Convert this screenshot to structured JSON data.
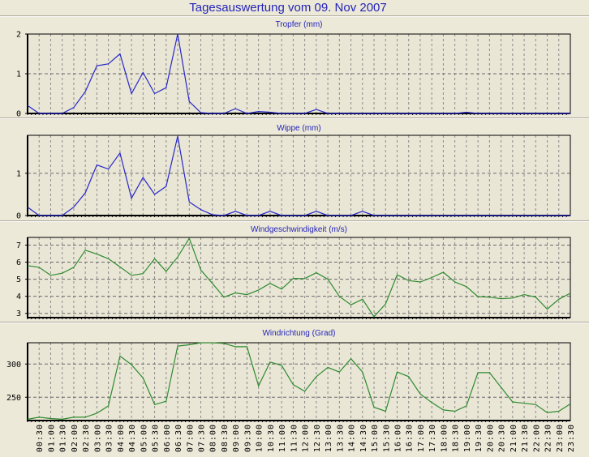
{
  "page_title": "Tagesauswertung vom 09. Nov 2007",
  "colors": {
    "background": "#ECE9D8",
    "title": "#2424B8",
    "blue_series": "#2828C8",
    "green_series": "#2E8B2E",
    "grid": "#808080"
  },
  "x_labels": [
    "00:00",
    "00:30",
    "01:00",
    "01:30",
    "02:00",
    "02:30",
    "03:00",
    "03:30",
    "04:00",
    "04:30",
    "05:00",
    "05:30",
    "06:00",
    "06:30",
    "07:00",
    "07:30",
    "08:00",
    "08:30",
    "09:00",
    "09:30",
    "10:00",
    "10:30",
    "11:00",
    "11:30",
    "12:00",
    "12:30",
    "13:00",
    "13:30",
    "14:00",
    "14:30",
    "15:00",
    "15:30",
    "16:00",
    "16:30",
    "17:00",
    "17:30",
    "18:00",
    "18:30",
    "19:00",
    "19:30",
    "20:00",
    "20:30",
    "21:00",
    "21:30",
    "22:00",
    "22:30",
    "23:00",
    "23:30"
  ],
  "chart_data": [
    {
      "type": "line",
      "title": "Tropfer (mm)",
      "color": "#2828C8",
      "ylim": [
        0,
        2
      ],
      "yticks": [
        0,
        1,
        2
      ],
      "values": [
        0.2,
        0,
        0,
        0,
        0.15,
        0.55,
        1.2,
        1.25,
        1.5,
        0.5,
        1.03,
        0.5,
        0.65,
        2.0,
        0.3,
        0.02,
        0,
        0,
        0.12,
        0,
        0.05,
        0.03,
        0,
        0,
        0,
        0.1,
        0,
        0,
        0,
        0,
        0,
        0,
        0,
        0,
        0,
        0,
        0,
        0,
        0.03,
        0,
        0,
        0,
        0,
        0,
        0,
        0,
        0,
        0
      ]
    },
    {
      "type": "line",
      "title": "Wippe (mm)",
      "color": "#2828C8",
      "ylim": [
        0,
        1.9
      ],
      "yticks": [
        0,
        1
      ],
      "values": [
        0.2,
        0,
        0,
        0,
        0.2,
        0.54,
        1.2,
        1.1,
        1.48,
        0.41,
        0.9,
        0.5,
        0.69,
        1.88,
        0.32,
        0.14,
        0.02,
        0,
        0.1,
        0,
        0,
        0.1,
        0,
        0,
        0,
        0.1,
        0,
        0,
        0,
        0.1,
        0,
        0,
        0,
        0,
        0,
        0,
        0,
        0,
        0,
        0,
        0,
        0,
        0,
        0,
        0,
        0,
        0,
        0
      ]
    },
    {
      "type": "line",
      "title": "Windgeschwindigkeit (m/s)",
      "color": "#2E8B2E",
      "ylim": [
        2.75,
        7.45
      ],
      "yticks": [
        3,
        4,
        5,
        6,
        7
      ],
      "values": [
        5.8,
        5.7,
        5.23,
        5.35,
        5.7,
        6.7,
        6.47,
        6.2,
        5.72,
        5.23,
        5.33,
        6.2,
        5.46,
        6.3,
        7.4,
        5.54,
        4.76,
        3.95,
        4.2,
        4.1,
        4.37,
        4.76,
        4.42,
        5.05,
        5.04,
        5.38,
        5.0,
        4.0,
        3.5,
        3.83,
        2.8,
        3.55,
        5.26,
        4.92,
        4.84,
        5.1,
        5.41,
        4.84,
        4.57,
        3.98,
        3.95,
        3.86,
        3.9,
        4.1,
        3.95,
        3.25,
        3.83,
        4.18
      ]
    },
    {
      "type": "line",
      "title": "Windrichtung (Grad)",
      "color": "#2E8B2E",
      "ylim": [
        215,
        332
      ],
      "yticks": [
        250,
        300
      ],
      "values": [
        217,
        220,
        218,
        217,
        220,
        220,
        226,
        237,
        312,
        299,
        279,
        239,
        244,
        327,
        329,
        332,
        332,
        331,
        326,
        326,
        267,
        303,
        298,
        269,
        259,
        281,
        295,
        288,
        308,
        288,
        235,
        229,
        288,
        281,
        255,
        242,
        231,
        229,
        237,
        287,
        287,
        265,
        243,
        241,
        239,
        227,
        229,
        240
      ]
    }
  ]
}
